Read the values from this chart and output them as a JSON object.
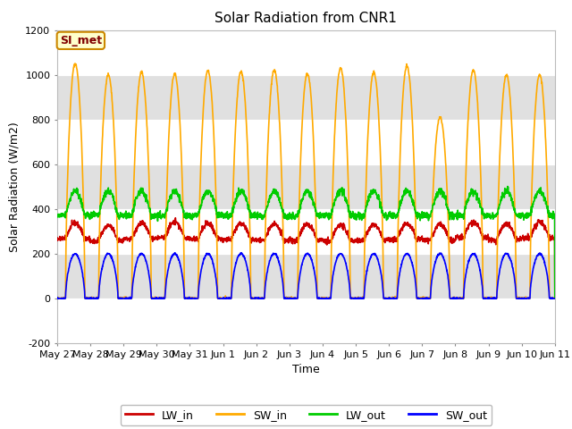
{
  "title": "Solar Radiation from CNR1",
  "xlabel": "Time",
  "ylabel": "Solar Radiation (W/m2)",
  "ylim": [
    -200,
    1200
  ],
  "yticks": [
    -200,
    0,
    200,
    400,
    600,
    800,
    1000,
    1200
  ],
  "annotation_text": "SI_met",
  "annotation_bg": "#ffffcc",
  "annotation_border": "#cc8800",
  "annotation_text_color": "#800000",
  "colors": {
    "LW_in": "#cc0000",
    "SW_in": "#ffaa00",
    "LW_out": "#00cc00",
    "SW_out": "#0000ff"
  },
  "linewidth": 1.2,
  "fig_bg": "#ffffff",
  "plot_bg": "#ffffff",
  "band_color": "#e0e0e0",
  "grid_color": "#ffffff",
  "n_days": 15,
  "tick_labels": [
    "May 27",
    "May 28",
    "May 29",
    "May 30",
    "May 31",
    "Jun 1",
    "Jun 2",
    "Jun 3",
    "Jun 4",
    "Jun 5",
    "Jun 6",
    "Jun 7",
    "Jun 8",
    "Jun 9",
    "Jun 10",
    "Jun 11"
  ]
}
